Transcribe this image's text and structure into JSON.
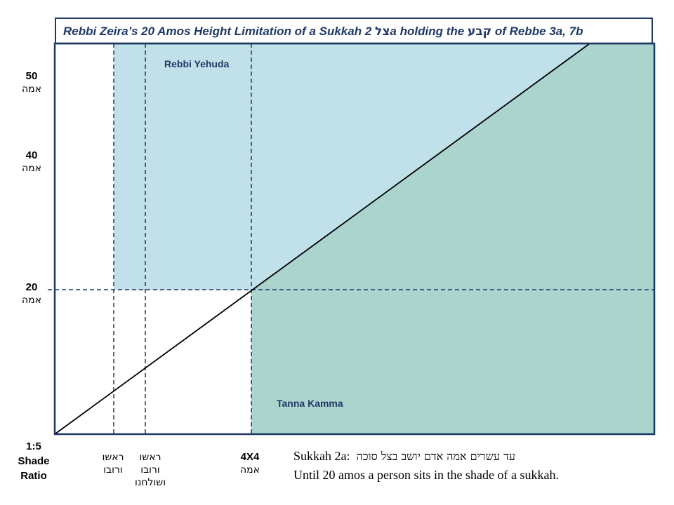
{
  "title": {
    "before": "Rebbi Zeira’s 20 Amos Height Limitation of a Sukkah",
    "heb1": "צל",
    "middle": "2a holding the",
    "heb2": "קבע",
    "after": "of Rebbe 3a, 7b"
  },
  "y_labels": [
    {
      "value": "50",
      "unit": "אמה"
    },
    {
      "value": "40",
      "unit": "אמה"
    },
    {
      "value": "20",
      "unit": "אמה"
    }
  ],
  "origin_label": {
    "line1": "1:5",
    "line2": "Shade",
    "line3": "Ratio"
  },
  "x_labels": [
    {
      "line1": "ראשו",
      "line2": "ורובו",
      "line3": ""
    },
    {
      "line1": "ראשו",
      "line2": "ורובו",
      "line3": "ושולחנו"
    },
    {
      "line1": "4X4",
      "line2": "אמה",
      "line3": ""
    }
  ],
  "regions": {
    "rebbi_yehuda": {
      "label": "Rebbi Yehuda",
      "color": "#c0e0ea"
    },
    "tanna_kamma": {
      "label": "Tanna Kamma",
      "color": "#acd4cf"
    }
  },
  "colors": {
    "frame": "#1f3864",
    "diagonal": "#000000"
  },
  "source": {
    "ref": "Sukkah 2a:",
    "hebrew": "עד עשרים אמה אדם יושב בצל סוכה",
    "english": "Until 20 amos a person sits in the shade of a sukkah."
  }
}
